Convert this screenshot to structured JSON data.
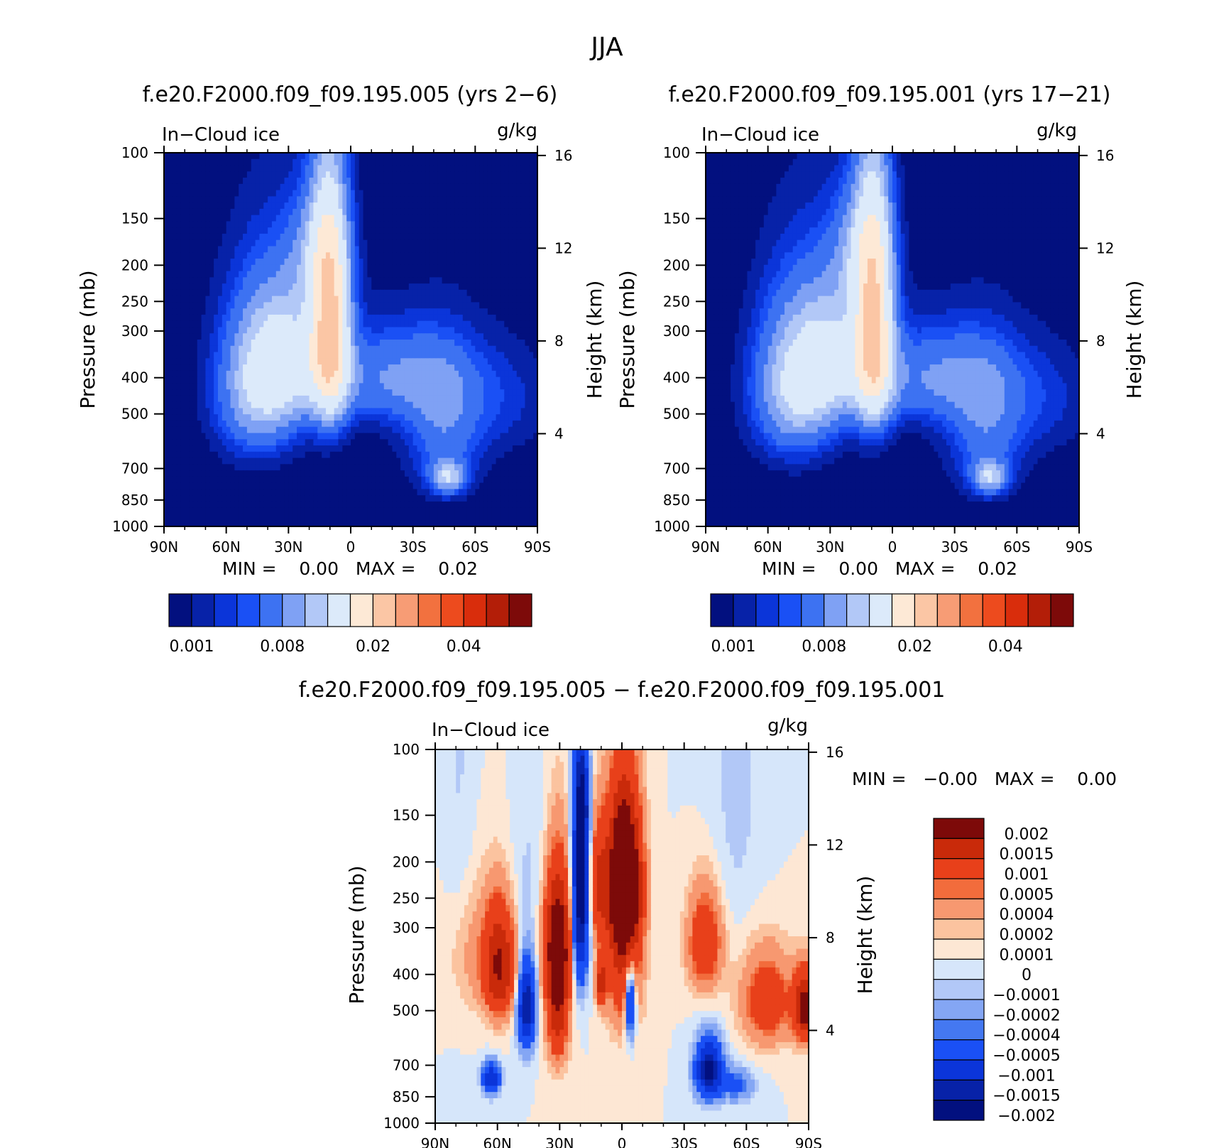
{
  "figure": {
    "title": "JJA"
  },
  "colors": {
    "seq": [
      "#02107f",
      "#0722a8",
      "#0b35d9",
      "#1a50f5",
      "#3d72f2",
      "#7fa1f4",
      "#b2c8f7",
      "#dceafa",
      "#fde9d6",
      "#fbc6a5",
      "#f79c75",
      "#f2713f",
      "#ed4b1e",
      "#d92d0c",
      "#b31e08",
      "#7d0a09"
    ],
    "diff": [
      "#02107f",
      "#0722a8",
      "#0b35d9",
      "#1a50f5",
      "#4478f1",
      "#84a6f4",
      "#b2c8f7",
      "#d6e6fa",
      "#fde7d4",
      "#fbc39f",
      "#f79870",
      "#f26c3c",
      "#e8401a",
      "#c92a0a",
      "#7d0a09"
    ]
  },
  "chart_data": [
    {
      "type": "heatmap",
      "id": "panel-a",
      "title": "f.e20.F2000.f09_f09.195.005 (yrs 2−6)",
      "left_label": "In−Cloud ice",
      "right_label": "g/kg",
      "ylabel": "Pressure (mb)",
      "y2label": "Height (km)",
      "x_ticks": [
        "90N",
        "60N",
        "30N",
        "0",
        "30S",
        "60S",
        "90S"
      ],
      "x_values": [
        90,
        60,
        30,
        0,
        -30,
        -60,
        -90
      ],
      "y_ticks": [
        100,
        150,
        200,
        250,
        300,
        400,
        500,
        700,
        850,
        1000
      ],
      "y2_ticks": [
        16,
        12,
        8,
        4
      ],
      "ylim": [
        100,
        1000
      ],
      "xlim": [
        90,
        -90
      ],
      "minmax_text": "MIN =    0.00   MAX =    0.02",
      "colorbar": {
        "labels": [
          "0.001",
          "0.008",
          "0.02",
          "0.04"
        ]
      },
      "features": [
        {
          "lat": -20,
          "p": 400,
          "slat": 38,
          "sp": 120,
          "amp": 0.006
        },
        {
          "lat": 45,
          "p": 420,
          "slat": 20,
          "sp": 200,
          "amp": 0.009
        },
        {
          "lat": 30,
          "p": 350,
          "slat": 18,
          "sp": 150,
          "amp": 0.008
        },
        {
          "lat": 10,
          "p": 300,
          "slat": 9,
          "sp": 190,
          "amp": 0.02
        },
        {
          "lat": 15,
          "p": 180,
          "slat": 14,
          "sp": 70,
          "amp": 0.006
        },
        {
          "lat": -45,
          "p": 560,
          "slat": 18,
          "sp": 230,
          "amp": 0.005
        },
        {
          "lat": -47,
          "p": 740,
          "slat": 8,
          "sp": 70,
          "amp": 0.008
        },
        {
          "lat": -75,
          "p": 470,
          "slat": 22,
          "sp": 160,
          "amp": 0.002
        }
      ]
    },
    {
      "type": "heatmap",
      "id": "panel-b",
      "title": "f.e20.F2000.f09_f09.195.001 (yrs 17−21)",
      "left_label": "In−Cloud ice",
      "right_label": "g/kg",
      "ylabel": "Pressure (mb)",
      "y2label": "Height (km)",
      "x_ticks": [
        "90N",
        "60N",
        "30N",
        "0",
        "30S",
        "60S",
        "90S"
      ],
      "x_values": [
        90,
        60,
        30,
        0,
        -30,
        -60,
        -90
      ],
      "y_ticks": [
        100,
        150,
        200,
        250,
        300,
        400,
        500,
        700,
        850,
        1000
      ],
      "y2_ticks": [
        16,
        12,
        8,
        4
      ],
      "ylim": [
        100,
        1000
      ],
      "xlim": [
        90,
        -90
      ],
      "minmax_text": "MIN =    0.00   MAX =    0.02",
      "colorbar": {
        "labels": [
          "0.001",
          "0.008",
          "0.02",
          "0.04"
        ]
      },
      "features": [
        {
          "lat": -20,
          "p": 400,
          "slat": 38,
          "sp": 120,
          "amp": 0.006
        },
        {
          "lat": 47,
          "p": 420,
          "slat": 20,
          "sp": 200,
          "amp": 0.01
        },
        {
          "lat": 28,
          "p": 350,
          "slat": 18,
          "sp": 150,
          "amp": 0.008
        },
        {
          "lat": 9,
          "p": 300,
          "slat": 9,
          "sp": 200,
          "amp": 0.019
        },
        {
          "lat": 15,
          "p": 180,
          "slat": 14,
          "sp": 70,
          "amp": 0.006
        },
        {
          "lat": -45,
          "p": 560,
          "slat": 18,
          "sp": 230,
          "amp": 0.005
        },
        {
          "lat": -47,
          "p": 740,
          "slat": 8,
          "sp": 70,
          "amp": 0.008
        },
        {
          "lat": -75,
          "p": 470,
          "slat": 22,
          "sp": 160,
          "amp": 0.002
        }
      ]
    },
    {
      "type": "heatmap",
      "id": "panel-diff",
      "title": "f.e20.F2000.f09_f09.195.005 − f.e20.F2000.f09_f09.195.001",
      "left_label": "In−Cloud ice",
      "right_label": "g/kg",
      "ylabel": "Pressure (mb)",
      "y2label": "Height (km)",
      "x_ticks": [
        "90N",
        "60N",
        "30N",
        "0",
        "30S",
        "60S",
        "90S"
      ],
      "x_values": [
        90,
        60,
        30,
        0,
        -30,
        -60,
        -90
      ],
      "y_ticks": [
        100,
        150,
        200,
        250,
        300,
        400,
        500,
        700,
        850,
        1000
      ],
      "y2_ticks": [
        16,
        12,
        8,
        4
      ],
      "ylim": [
        100,
        1000
      ],
      "xlim": [
        90,
        -90
      ],
      "minmax_text": "MIN =   −0.00   MAX =    0.00",
      "colorbar": {
        "labels": [
          "0.002",
          "0.0015",
          "0.001",
          "0.0005",
          "0.0004",
          "0.0002",
          "0.0001",
          "0",
          "−0.0001",
          "−0.0002",
          "−0.0004",
          "−0.0005",
          "−0.001",
          "−0.0015",
          "−0.002"
        ]
      },
      "features": [
        {
          "lat": -1,
          "p": 230,
          "slat": 7,
          "sp": 90,
          "amp": 0.0028
        },
        {
          "lat": -1,
          "p": 320,
          "slat": 8,
          "sp": 200,
          "amp": 0.0012
        },
        {
          "lat": 11,
          "p": 230,
          "slat": 4,
          "sp": 80,
          "amp": 0.001
        },
        {
          "lat": 31,
          "p": 330,
          "slat": 6,
          "sp": 130,
          "amp": 0.002
        },
        {
          "lat": 31,
          "p": 500,
          "slat": 5,
          "sp": 170,
          "amp": 0.0012
        },
        {
          "lat": 59,
          "p": 380,
          "slat": 7,
          "sp": 120,
          "amp": 0.0015
        },
        {
          "lat": 70,
          "p": 350,
          "slat": 14,
          "sp": 140,
          "amp": 0.0003
        },
        {
          "lat": 20,
          "p": 240,
          "slat": 3.5,
          "sp": 150,
          "amp": -0.0025
        },
        {
          "lat": 19,
          "p": 140,
          "slat": 3,
          "sp": 40,
          "amp": -0.0012
        },
        {
          "lat": 46,
          "p": 490,
          "slat": 4,
          "sp": 120,
          "amp": -0.002
        },
        {
          "lat": 63,
          "p": 760,
          "slat": 4,
          "sp": 70,
          "amp": -0.0015
        },
        {
          "lat": -4,
          "p": 470,
          "slat": 2.5,
          "sp": 110,
          "amp": -0.0015
        },
        {
          "lat": 10,
          "p": 420,
          "slat": 2.5,
          "sp": 60,
          "amp": 0.0012
        },
        {
          "lat": -42,
          "p": 720,
          "slat": 6,
          "sp": 120,
          "amp": -0.0022
        },
        {
          "lat": -55,
          "p": 790,
          "slat": 8,
          "sp": 80,
          "amp": -0.0006
        },
        {
          "lat": -40,
          "p": 330,
          "slat": 8,
          "sp": 100,
          "amp": 0.0009
        },
        {
          "lat": -70,
          "p": 470,
          "slat": 12,
          "sp": 130,
          "amp": 0.0008
        },
        {
          "lat": -88,
          "p": 490,
          "slat": 5,
          "sp": 100,
          "amp": 0.0018
        },
        {
          "lat": -55,
          "p": 140,
          "slat": 14,
          "sp": 150,
          "amp": -0.00013
        },
        {
          "lat": 78,
          "p": 160,
          "slat": 8,
          "sp": 250,
          "amp": -0.00012
        },
        {
          "lat": 45,
          "p": 220,
          "slat": 10,
          "sp": 120,
          "amp": -0.00012
        }
      ]
    }
  ]
}
